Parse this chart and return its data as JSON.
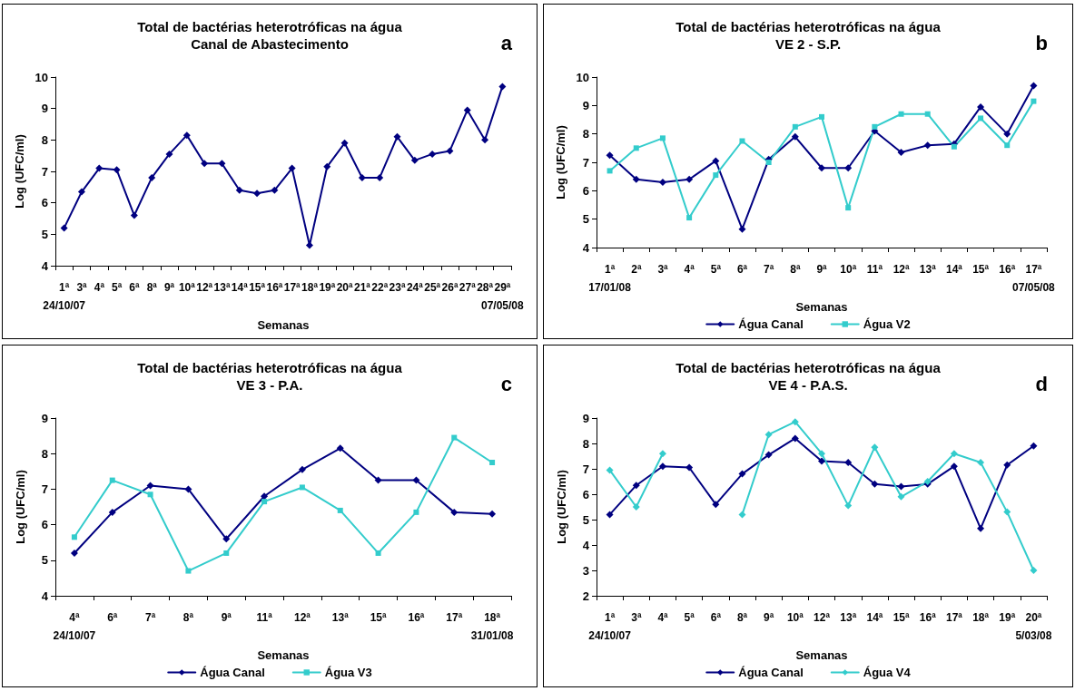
{
  "chart_data": [
    {
      "type": "line",
      "title": "Total de bactérias heterotróficas na água",
      "subtitle": "Canal de Abastecimento",
      "annotations": [
        "a"
      ],
      "xlabel": "Semanas",
      "ylabel": "Log (UFC/ml)",
      "categories": [
        "1ª\n24/10/07",
        "3ª",
        "4ª",
        "5ª",
        "6ª",
        "8ª",
        "9ª",
        "10ª",
        "12ª",
        "13ª",
        "14ª",
        "15ª",
        "16ª",
        "17ª",
        "18ª",
        "19ª",
        "20ª",
        "21ª",
        "22ª",
        "23ª",
        "24ª",
        "25ª",
        "26ª",
        "27ª",
        "28ª",
        "29ª\n07/05/08"
      ],
      "series": [
        {
          "color": "#000080",
          "marker": "diamond",
          "values": [
            5.2,
            6.35,
            7.1,
            7.05,
            5.6,
            6.8,
            7.55,
            8.15,
            7.25,
            7.25,
            6.4,
            6.3,
            6.4,
            7.1,
            4.65,
            7.15,
            7.9,
            6.8,
            6.8,
            8.1,
            7.35,
            7.55,
            7.65,
            8.95,
            8.0,
            9.7
          ]
        }
      ],
      "ylim": [
        4,
        10
      ],
      "yticks": [
        4,
        5,
        6,
        7,
        8,
        9,
        10
      ],
      "grid": false,
      "legend": false
    },
    {
      "type": "line",
      "title": "Total de bactérias heterotróficas na água",
      "subtitle": "VE 2 - S.P.",
      "annotations": [
        "b"
      ],
      "xlabel": "Semanas",
      "ylabel": "Log (UFC/ml)",
      "categories": [
        "1ª\n17/01/08",
        "2ª",
        "3ª",
        "4ª",
        "5ª",
        "6ª",
        "7ª",
        "8ª",
        "9ª",
        "10ª",
        "11ª",
        "12ª",
        "13ª",
        "14ª",
        "15ª",
        "16ª",
        "17ª\n07/05/08"
      ],
      "series": [
        {
          "name": "Água Canal",
          "color": "#000080",
          "marker": "diamond",
          "values": [
            7.25,
            6.4,
            6.3,
            6.4,
            7.05,
            4.65,
            7.1,
            7.9,
            6.8,
            6.8,
            8.1,
            7.35,
            7.6,
            7.65,
            8.95,
            8.0,
            9.7
          ]
        },
        {
          "name": "Água V2",
          "color": "#33cccc",
          "marker": "square",
          "values": [
            6.7,
            7.5,
            7.85,
            5.05,
            6.55,
            7.75,
            7.0,
            8.25,
            8.6,
            5.4,
            8.25,
            8.7,
            8.7,
            7.55,
            8.55,
            7.6,
            9.15
          ]
        }
      ],
      "ylim": [
        4,
        10
      ],
      "yticks": [
        4,
        5,
        6,
        7,
        8,
        9,
        10
      ],
      "grid": false,
      "legend": "bottom"
    },
    {
      "type": "line",
      "title": "Total de bactérias heterotróficas na água",
      "subtitle": "VE 3 - P.A.",
      "annotations": [
        "c"
      ],
      "xlabel": "Semanas",
      "ylabel": "Log (UFC/ml)",
      "categories": [
        "4ª\n24/10/07",
        "6ª",
        "7ª",
        "8ª",
        "9ª",
        "11ª",
        "12ª",
        "13ª",
        "15ª",
        "16ª",
        "17ª",
        "18ª\n31/01/08"
      ],
      "series": [
        {
          "name": "Água Canal",
          "color": "#000080",
          "marker": "diamond",
          "values": [
            5.2,
            6.35,
            7.1,
            7.0,
            5.6,
            6.8,
            7.55,
            8.15,
            7.25,
            7.25,
            6.35,
            6.3
          ]
        },
        {
          "name": "Água V3",
          "color": "#33cccc",
          "marker": "square",
          "values": [
            5.65,
            7.25,
            6.85,
            4.7,
            5.2,
            6.65,
            7.05,
            6.4,
            5.2,
            6.35,
            8.45,
            7.75
          ]
        }
      ],
      "ylim": [
        4,
        9
      ],
      "yticks": [
        4,
        5,
        6,
        7,
        8,
        9
      ],
      "grid": false,
      "legend": "bottom"
    },
    {
      "type": "line",
      "title": "Total de bactérias heterotróficas na água",
      "subtitle": "VE 4 - P.A.S.",
      "annotations": [
        "d"
      ],
      "xlabel": "Semanas",
      "ylabel": "Log (UFC/ml)",
      "categories": [
        "1ª\n24/10/07",
        "3ª",
        "4ª",
        "5ª",
        "6ª",
        "8ª",
        "9ª",
        "10ª",
        "12ª",
        "13ª",
        "14ª",
        "15ª",
        "16ª",
        "17ª",
        "18ª",
        "19ª",
        "20ª\n5/03/08"
      ],
      "series": [
        {
          "name": "Água Canal",
          "color": "#000080",
          "marker": "diamond",
          "values": [
            5.2,
            6.35,
            7.1,
            7.05,
            5.6,
            6.8,
            7.55,
            8.2,
            7.3,
            7.25,
            6.4,
            6.3,
            6.4,
            7.1,
            4.65,
            7.15,
            7.9
          ]
        },
        {
          "name": "Água V4",
          "color": "#33cccc",
          "marker": "diamond",
          "values": [
            6.95,
            5.5,
            7.6,
            null,
            null,
            5.2,
            8.35,
            8.85,
            7.6,
            5.55,
            7.85,
            5.9,
            6.5,
            7.6,
            7.25,
            5.3,
            3.0
          ]
        }
      ],
      "ylim": [
        2,
        9
      ],
      "yticks": [
        2,
        3,
        4,
        5,
        6,
        7,
        8,
        9
      ],
      "grid": false,
      "legend": "bottom"
    }
  ]
}
